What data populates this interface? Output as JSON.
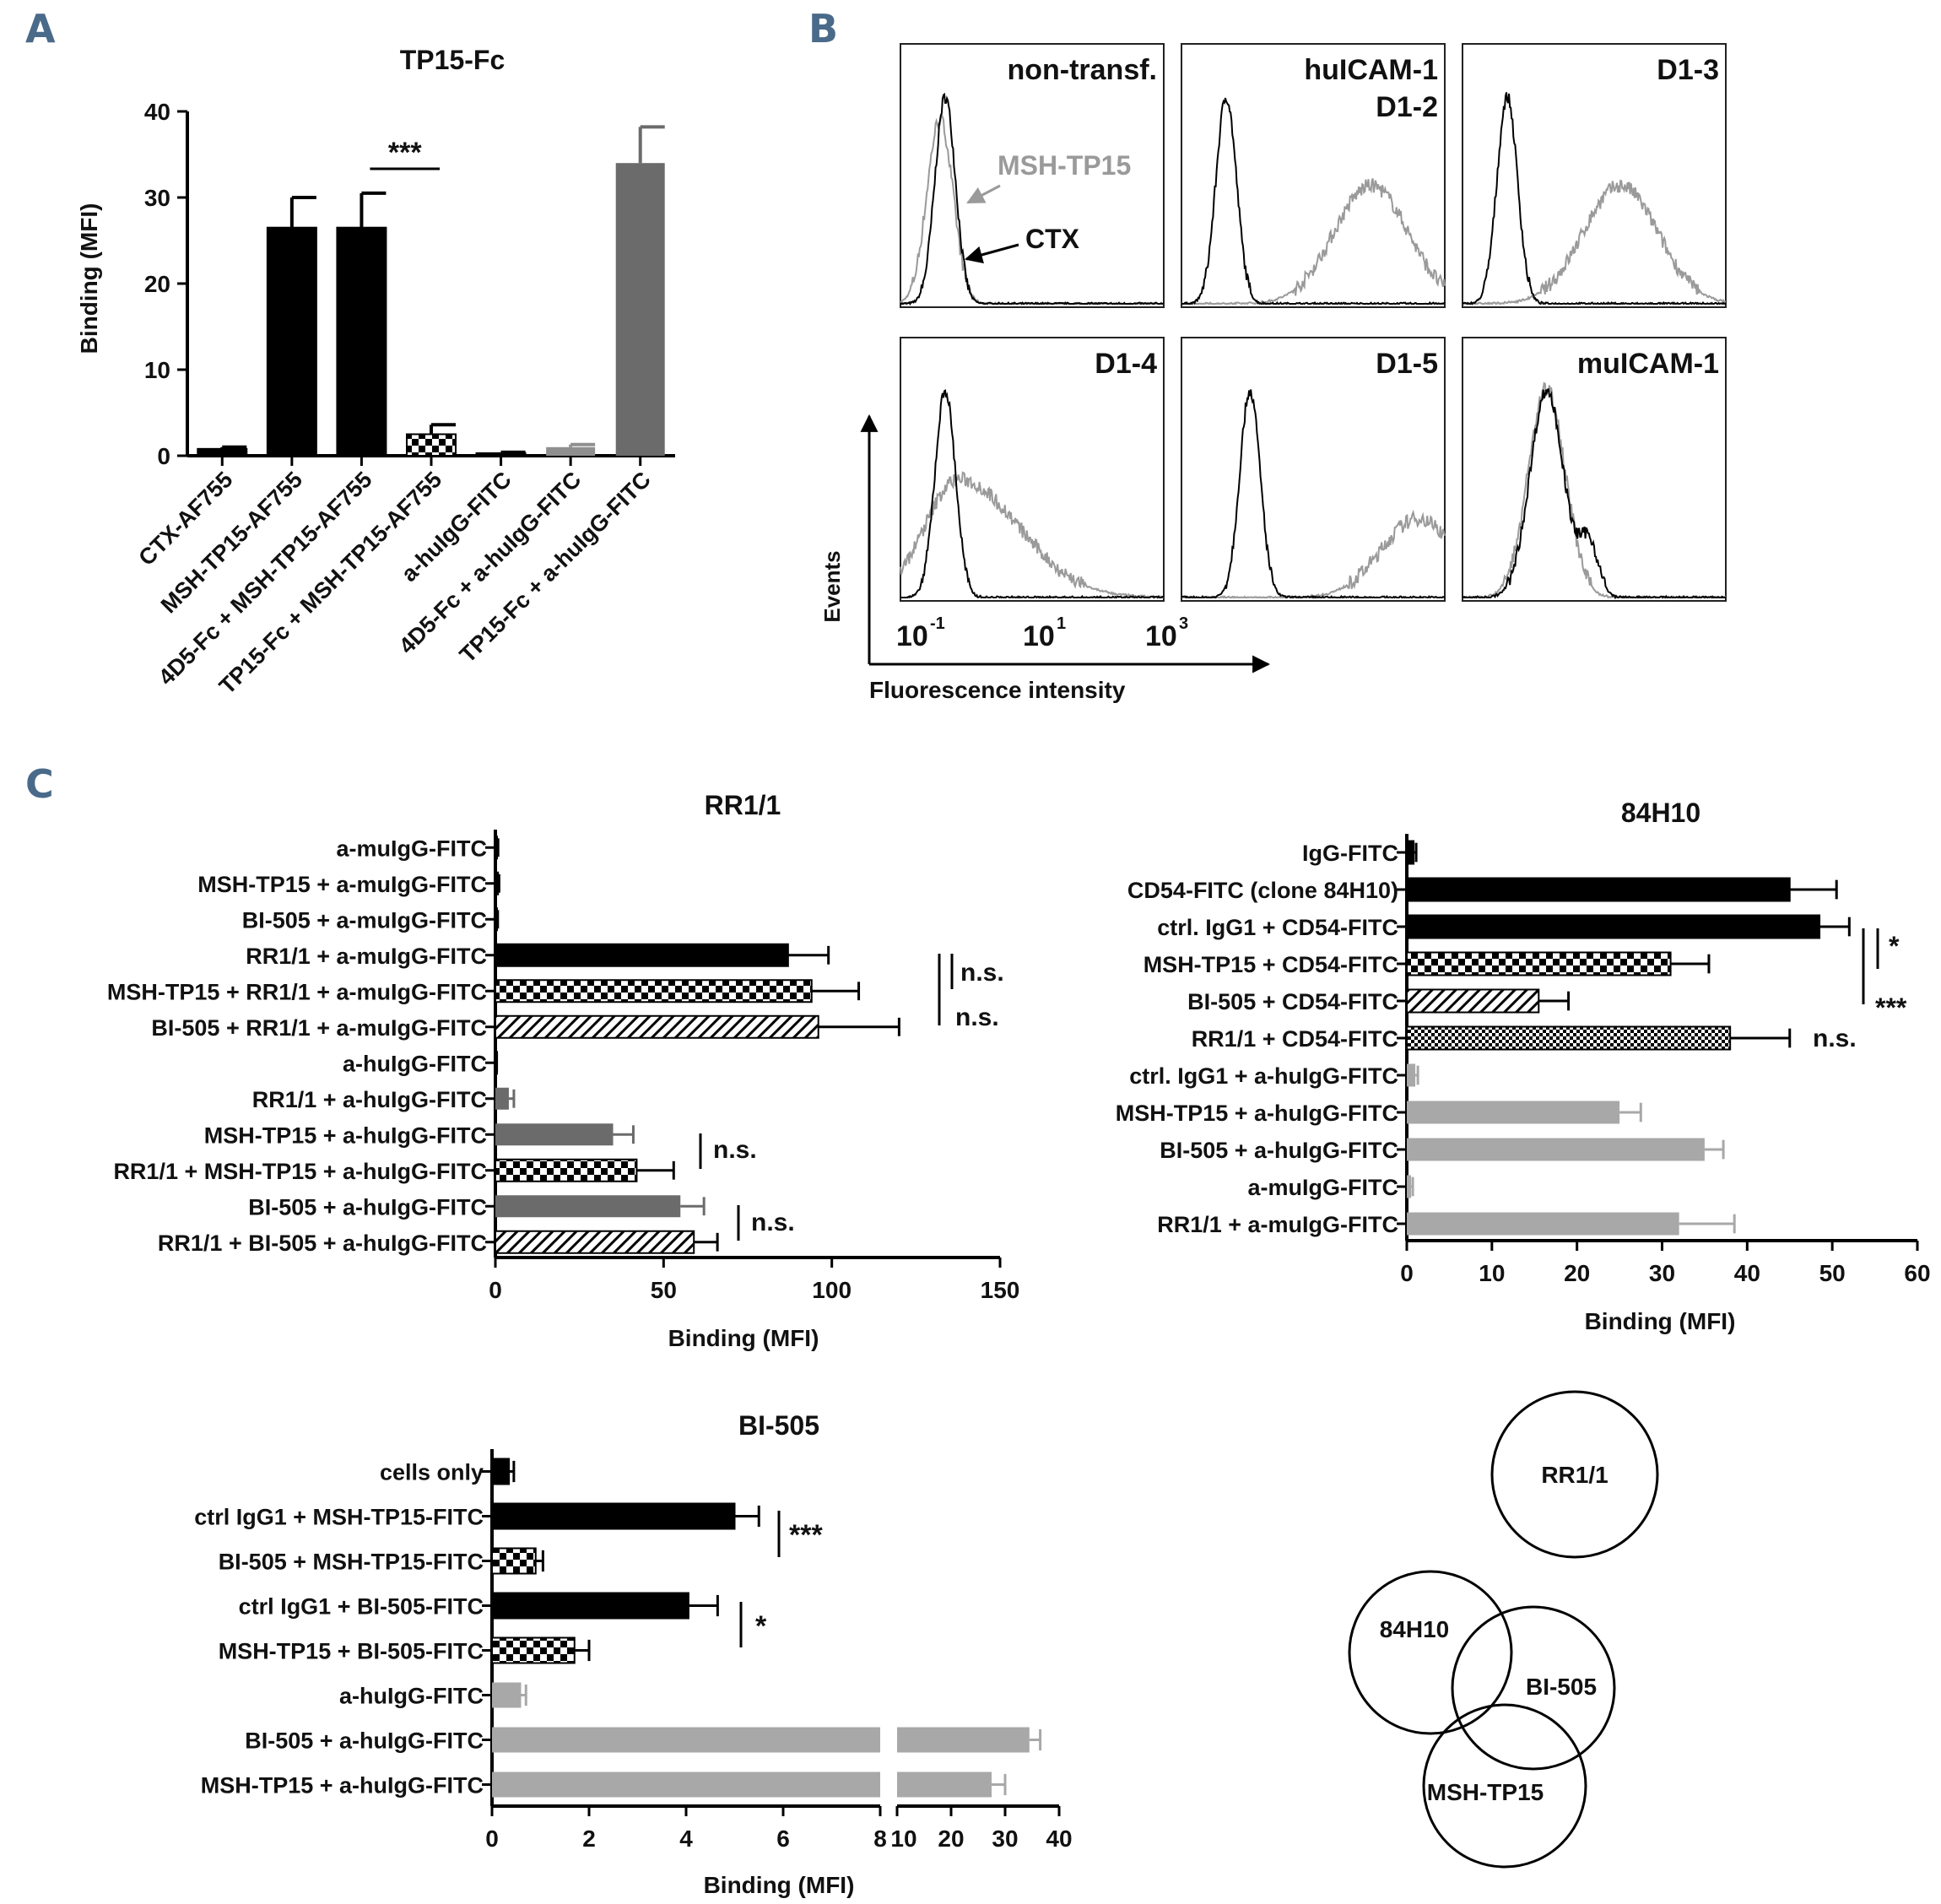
{
  "panel_letters": [
    "A",
    "B",
    "C"
  ],
  "colors": {
    "black": "#000000",
    "dark_gray": "#6b6b6b",
    "mid_gray": "#8f8f8f",
    "light_gray": "#a8a8a8",
    "curve_gray": "#9a9a9a",
    "panel_letter": "#4a6a8a"
  },
  "chart_data": [
    {
      "id": "A",
      "type": "bar",
      "orientation": "vertical",
      "title": "TP15-Fc",
      "ylabel": "Binding (MFI)",
      "ylim": [
        0,
        40
      ],
      "yticks": [
        "0",
        "10",
        "20",
        "30",
        "40"
      ],
      "categories": [
        "CTX-AF755",
        "MSH-TP15-AF755",
        "4D5-Fc + MSH-TP15-AF755",
        "TP15-Fc + MSH-TP15-AF755",
        "a-huIgG-FITC",
        "4D5-Fc + a-huIgG-FITC",
        "TP15-Fc + a-huIgG-FITC"
      ],
      "values": [
        0.8,
        26.5,
        26.5,
        2.5,
        0.3,
        1.0,
        34.0
      ],
      "errors": [
        0.2,
        3.5,
        4.0,
        1.1,
        0.1,
        0.3,
        4.2
      ],
      "fills": [
        "black",
        "black",
        "black",
        "checker",
        "black",
        "mid_gray",
        "dark_gray"
      ],
      "annotations": [
        "***"
      ]
    },
    {
      "id": "B",
      "type": "histogram",
      "xlabel": "Fluorescence intensity",
      "ylabel": "Events",
      "x_ticks": [
        "10",
        "10",
        "10"
      ],
      "x_tick_exponents": [
        "-1",
        "1",
        "3"
      ],
      "series": [
        {
          "name": "MSH-TP15"
        },
        {
          "name": "CTX"
        }
      ],
      "panels": [
        {
          "label": "non-transf.",
          "label2": "",
          "shift": 0.0,
          "gray_peak": 0.15
        },
        {
          "label": "huICAM-1",
          "label2": "D1-2",
          "shift": 0.7,
          "gray_peak": 0.72
        },
        {
          "label": "D1-3",
          "label2": "",
          "shift": 0.6,
          "gray_peak": 0.6
        },
        {
          "label": "D1-4",
          "label2": "",
          "shift": 0.3,
          "gray_peak": 0.2
        },
        {
          "label": "D1-5",
          "label2": "",
          "shift": 0.9,
          "gray_peak": 0.9
        },
        {
          "label": "muICAM-1",
          "label2": "",
          "shift": 0.0,
          "gray_peak": 0.35
        }
      ]
    },
    {
      "id": "C1",
      "type": "bar",
      "orientation": "horizontal",
      "title": "RR1/1",
      "xlabel": "Binding (MFI)",
      "xlim": [
        0,
        150
      ],
      "xticks": [
        "0",
        "50",
        "100",
        "150"
      ],
      "categories": [
        "a-muIgG-FITC",
        "MSH-TP15 + a-muIgG-FITC",
        "BI-505 + a-muIgG-FITC",
        "RR1/1 + a-muIgG-FITC",
        "MSH-TP15 + RR1/1 + a-muIgG-FITC",
        "BI-505 + RR1/1 + a-muIgG-FITC",
        "a-huIgG-FITC",
        "RR1/1 + a-huIgG-FITC",
        "MSH-TP15 + a-huIgG-FITC",
        "RR1/1 + MSH-TP15 + a-huIgG-FITC",
        "BI-505 + a-huIgG-FITC",
        "RR1/1 + BI-505 + a-huIgG-FITC"
      ],
      "values": [
        0.5,
        0.8,
        0.5,
        87,
        94,
        96,
        0.3,
        4,
        35,
        42,
        55,
        59
      ],
      "errors": [
        0.3,
        0.3,
        0.2,
        12,
        14,
        24,
        0.1,
        1.5,
        6,
        11,
        7,
        7
      ],
      "fills": [
        "black",
        "black",
        "black",
        "black",
        "checker",
        "hatch",
        "black",
        "dark_gray",
        "dark_gray",
        "checker",
        "dark_gray",
        "hatch"
      ],
      "annotations": [
        "n.s.",
        "n.s.",
        "n.s.",
        "n.s."
      ]
    },
    {
      "id": "C2",
      "type": "bar",
      "orientation": "horizontal",
      "title": "84H10",
      "xlabel": "Binding (MFI)",
      "xlim": [
        0,
        60
      ],
      "xticks": [
        "0",
        "10",
        "20",
        "30",
        "40",
        "50",
        "60"
      ],
      "categories": [
        "IgG-FITC",
        "CD54-FITC (clone 84H10)",
        "ctrl. IgG1 + CD54-FITC",
        "MSH-TP15 + CD54-FITC",
        "BI-505 + CD54-FITC",
        "RR1/1 + CD54-FITC",
        "ctrl. IgG1 + a-huIgG-FITC",
        "MSH-TP15 + a-huIgG-FITC",
        "BI-505 + a-huIgG-FITC",
        "a-muIgG-FITC",
        "RR1/1 + a-muIgG-FITC"
      ],
      "values": [
        0.8,
        45,
        48.5,
        31,
        15.5,
        38,
        1.0,
        25,
        35,
        0.5,
        32
      ],
      "errors": [
        0.3,
        5.5,
        3.5,
        4.5,
        3.5,
        7,
        0.3,
        2.5,
        2.2,
        0.2,
        6.5
      ],
      "fills": [
        "black",
        "black",
        "black",
        "checker",
        "hatch",
        "finecheck",
        "light_gray",
        "light_gray",
        "light_gray",
        "light_gray",
        "light_gray"
      ],
      "annotations": [
        "*",
        "***",
        "n.s."
      ]
    },
    {
      "id": "C3",
      "type": "bar",
      "orientation": "horizontal",
      "title": "BI-505",
      "xlabel": "Binding (MFI)",
      "axis_break": true,
      "xticks_left": [
        "0",
        "2",
        "4",
        "6",
        "8"
      ],
      "xticks_right": [
        "10",
        "20",
        "30",
        "40"
      ],
      "categories": [
        "cells only",
        "ctrl IgG1 + MSH-TP15-FITC",
        "BI-505 + MSH-TP15-FITC",
        "ctrl IgG1 + BI-505-FITC",
        "MSH-TP15 + BI-505-FITC",
        "a-huIgG-FITC",
        "BI-505 + a-huIgG-FITC",
        "MSH-TP15 + a-huIgG-FITC"
      ],
      "values": [
        0.35,
        5.0,
        0.9,
        4.05,
        1.7,
        0.6,
        34.5,
        27.5
      ],
      "errors": [
        0.1,
        0.5,
        0.15,
        0.6,
        0.3,
        0.1,
        2.0,
        2.5
      ],
      "fills": [
        "black",
        "black",
        "checker",
        "black",
        "checker",
        "light_gray",
        "light_gray",
        "light_gray"
      ],
      "annotations": [
        "***",
        "*"
      ]
    }
  ],
  "venn": {
    "labels": [
      "RR1/1",
      "84H10",
      "BI-505",
      "MSH-TP15"
    ]
  }
}
